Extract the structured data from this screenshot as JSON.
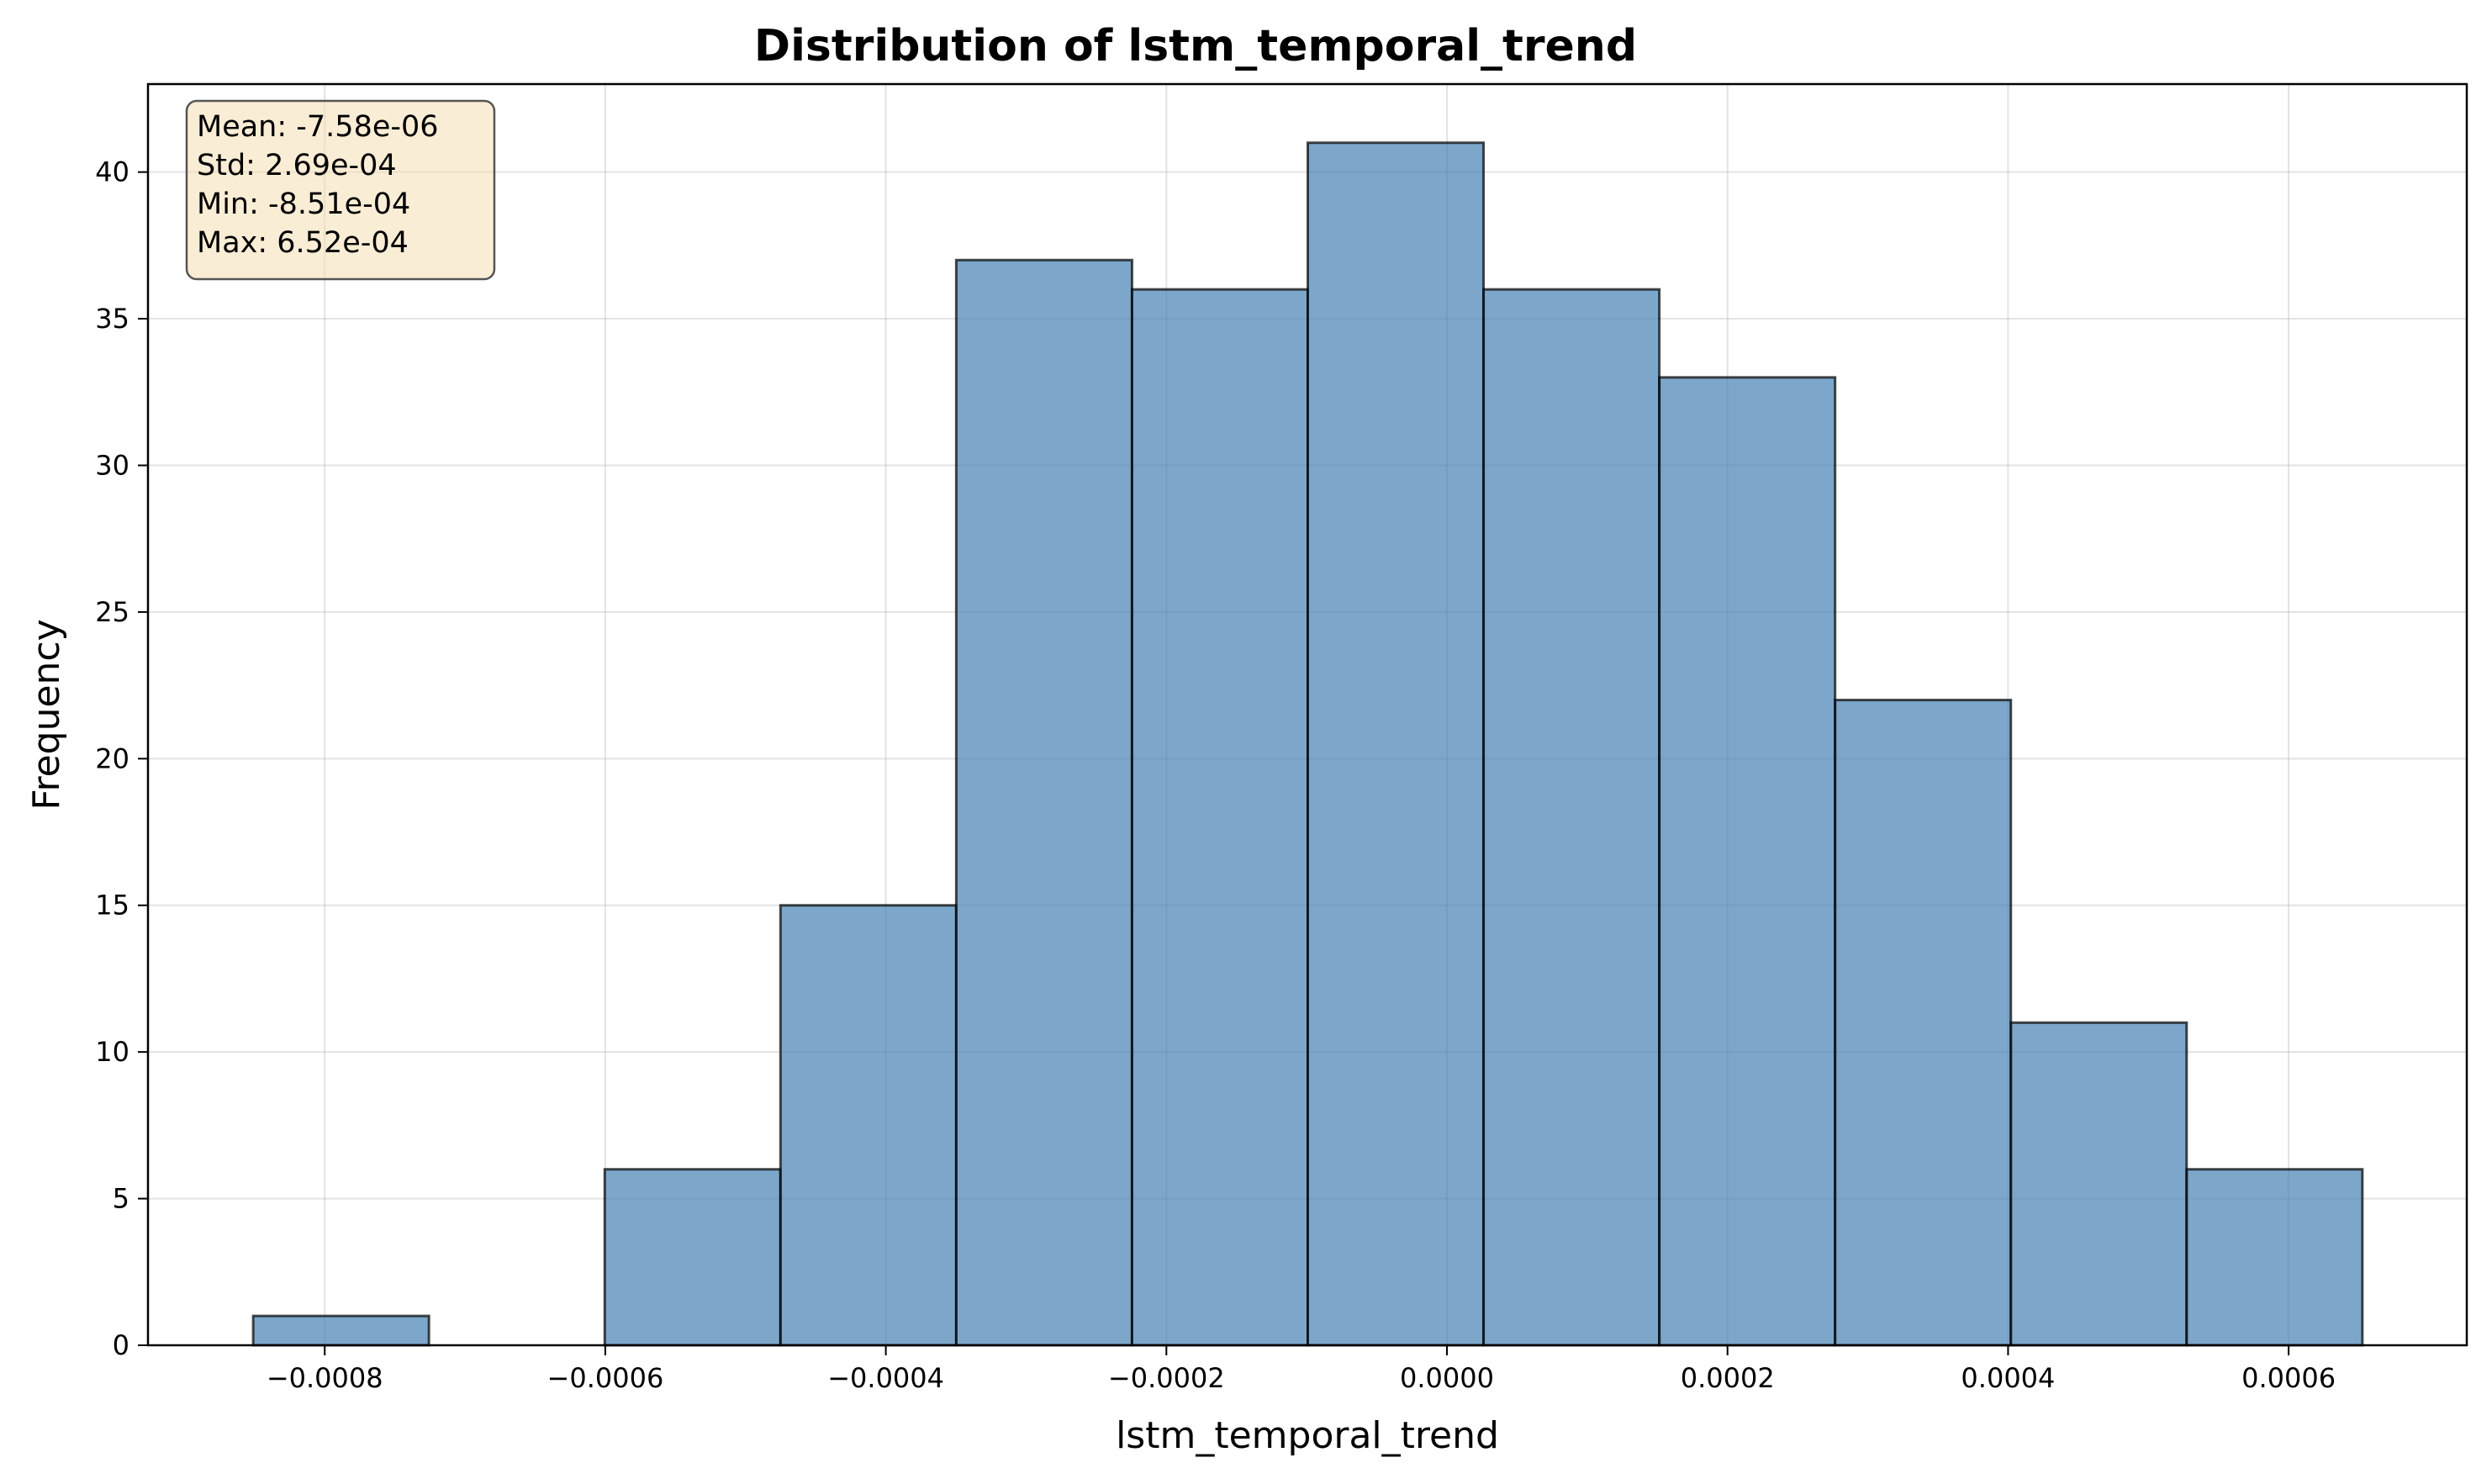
{
  "chart_data": {
    "type": "bar",
    "title": "Distribution of lstm_temporal_trend",
    "xlabel": "lstm_temporal_trend",
    "ylabel": "Frequency",
    "bin_edges": [
      -0.000851,
      -0.0007257,
      -0.0006004,
      -0.0004751,
      -0.0003498,
      -0.0002245,
      -9.92e-05,
      2.61e-05,
      0.0001514,
      0.0002767,
      0.000402,
      0.0005273,
      0.0006526
    ],
    "values": [
      1,
      0,
      6,
      15,
      37,
      36,
      41,
      36,
      33,
      22,
      11,
      6
    ],
    "xlim": [
      -0.000926,
      0.000727
    ],
    "ylim": [
      0,
      43
    ],
    "x_ticks": [
      -0.0008,
      -0.0006,
      -0.0004,
      -0.0002,
      0.0,
      0.0002,
      0.0004,
      0.0006
    ],
    "x_tick_labels": [
      "−0.0008",
      "−0.0006",
      "−0.0004",
      "−0.0002",
      "0.0000",
      "0.0002",
      "0.0004",
      "0.0006"
    ],
    "y_ticks": [
      0,
      5,
      10,
      15,
      20,
      25,
      30,
      35,
      40
    ],
    "y_tick_labels": [
      "0",
      "5",
      "10",
      "15",
      "20",
      "25",
      "30",
      "35",
      "40"
    ],
    "grid": true,
    "bar_color": "#4682b4",
    "bar_edge_color": "#000000",
    "stats_box": {
      "lines": [
        "Mean: -7.58e-06",
        "Std: 2.69e-04",
        "Min: -8.51e-04",
        "Max: 6.52e-04"
      ],
      "background": "#f5deb3",
      "placement": "top-left"
    }
  }
}
